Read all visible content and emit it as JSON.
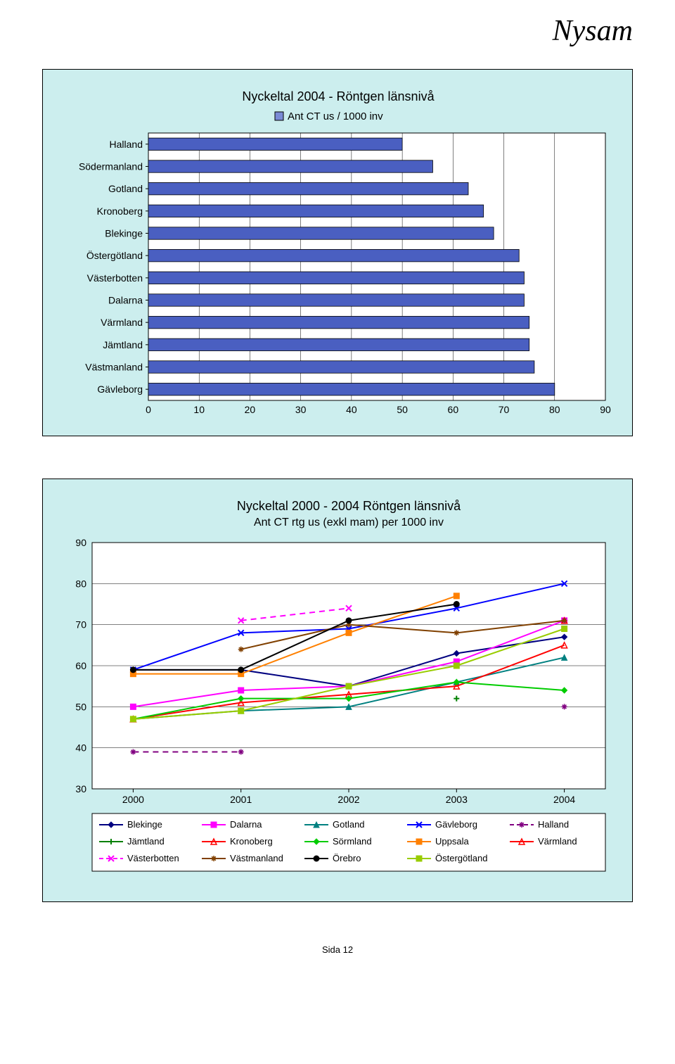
{
  "brand": "Nysam",
  "footer": "Sida 12",
  "barChart": {
    "type": "bar",
    "title": "Nyckeltal 2004  -  Röntgen länsnivå",
    "legend_label": "Ant CT us  /  1000 inv",
    "title_fontsize": 18,
    "legend_fontsize": 15,
    "plot_bg": "#ffffff",
    "frame_bg": "#cceeee",
    "grid_color": "#000000",
    "bar_fill": "#4a5fc1",
    "bar_border": "#000000",
    "legend_box_fill": "#7a8ad6",
    "xmin": 0,
    "xmax": 90,
    "xtick_step": 10,
    "tick_labels": [
      "0",
      "10",
      "20",
      "30",
      "40",
      "50",
      "60",
      "70",
      "80",
      "90"
    ],
    "categories": [
      "Halland",
      "Södermanland",
      "Gotland",
      "Kronoberg",
      "Blekinge",
      "Östergötland",
      "Västerbotten",
      "Dalarna",
      "Värmland",
      "Jämtland",
      "Västmanland",
      "Gävleborg"
    ],
    "values": [
      50,
      56,
      63,
      66,
      68,
      73,
      74,
      74,
      75,
      75,
      76,
      80
    ],
    "label_fontsize": 14,
    "tick_fontsize": 14
  },
  "lineChart": {
    "type": "line",
    "title": "Nyckeltal 2000 - 2004  Röntgen länsnivå",
    "subtitle": "Ant CT rtg us (exkl mam) per 1000 inv",
    "title_fontsize": 18,
    "subtitle_fontsize": 16,
    "plot_bg": "#ffffff",
    "frame_bg": "#cceeee",
    "grid_color": "#000000",
    "ymin": 30,
    "ymax": 90,
    "ytick_step": 10,
    "ytick_labels": [
      "30",
      "40",
      "50",
      "60",
      "70",
      "80",
      "90"
    ],
    "x_labels": [
      "2000",
      "2001",
      "2002",
      "2003",
      "2004"
    ],
    "x_positions": [
      0,
      1,
      2,
      3,
      4
    ],
    "line_width": 2,
    "marker_size": 6,
    "legend_fontsize": 13,
    "series": [
      {
        "name": "Blekinge",
        "color": "#000080",
        "marker": "diamond",
        "dash": "solid",
        "values": [
          59,
          59,
          55,
          63,
          67
        ]
      },
      {
        "name": "Dalarna",
        "color": "#ff00ff",
        "marker": "square",
        "dash": "solid",
        "values": [
          50,
          54,
          55,
          61,
          71
        ]
      },
      {
        "name": "Gotland",
        "color": "#008080",
        "marker": "triangle",
        "dash": "solid",
        "values": [
          47,
          49,
          50,
          56,
          62
        ]
      },
      {
        "name": "Gävleborg",
        "color": "#0000ff",
        "marker": "x",
        "dash": "solid",
        "values": [
          59,
          68,
          69,
          74,
          80
        ]
      },
      {
        "name": "Halland",
        "color": "#800080",
        "marker": "asterisk",
        "dash": "dash",
        "values": [
          39,
          39,
          null,
          null,
          50
        ]
      },
      {
        "name": "Jämtland",
        "color": "#008000",
        "marker": "plus",
        "dash": "solid",
        "values": [
          null,
          null,
          null,
          52,
          null
        ]
      },
      {
        "name": "Kronoberg",
        "color": "#ff0000",
        "marker": "triangle-open",
        "dash": "solid",
        "values": [
          47,
          51,
          53,
          55,
          65
        ]
      },
      {
        "name": "Sörmland",
        "color": "#00cc00",
        "marker": "diamond",
        "dash": "solid",
        "values": [
          47,
          52,
          52,
          56,
          54
        ]
      },
      {
        "name": "Uppsala",
        "color": "#ff8000",
        "marker": "square",
        "dash": "solid",
        "values": [
          58,
          58,
          68,
          77,
          null
        ]
      },
      {
        "name": "Värmland",
        "color": "#ff0000",
        "marker": "triangle-open",
        "dash": "solid",
        "values": [
          null,
          null,
          null,
          null,
          71
        ]
      },
      {
        "name": "Västerbotten",
        "color": "#ff00ff",
        "marker": "x",
        "dash": "dash",
        "values": [
          null,
          71,
          74,
          null,
          null
        ]
      },
      {
        "name": "Västmanland",
        "color": "#804000",
        "marker": "asterisk",
        "dash": "solid",
        "values": [
          null,
          64,
          70,
          68,
          71
        ]
      },
      {
        "name": "Örebro",
        "color": "#000000",
        "marker": "circle",
        "dash": "solid",
        "values": [
          59,
          59,
          71,
          75,
          null
        ]
      },
      {
        "name": "Östergötland",
        "color": "#99cc00",
        "marker": "square",
        "dash": "solid",
        "values": [
          47,
          49,
          55,
          60,
          69
        ]
      }
    ],
    "legend_rows": [
      [
        {
          "name": "Blekinge",
          "color": "#000080",
          "marker": "diamond",
          "dash": "solid"
        },
        {
          "name": "Dalarna",
          "color": "#ff00ff",
          "marker": "square",
          "dash": "solid"
        },
        {
          "name": "Gotland",
          "color": "#008080",
          "marker": "triangle",
          "dash": "solid"
        },
        {
          "name": "Gävleborg",
          "color": "#0000ff",
          "marker": "x",
          "dash": "solid"
        },
        {
          "name": "Halland",
          "color": "#800080",
          "marker": "asterisk",
          "dash": "dash"
        }
      ],
      [
        {
          "name": "Jämtland",
          "color": "#008000",
          "marker": "plus",
          "dash": "solid"
        },
        {
          "name": "Kronoberg",
          "color": "#ff0000",
          "marker": "triangle-open",
          "dash": "solid"
        },
        {
          "name": "Sörmland",
          "color": "#00cc00",
          "marker": "diamond",
          "dash": "solid"
        },
        {
          "name": "Uppsala",
          "color": "#ff8000",
          "marker": "square",
          "dash": "solid"
        },
        {
          "name": "Värmland",
          "color": "#ff0000",
          "marker": "triangle-open",
          "dash": "solid"
        }
      ],
      [
        {
          "name": "Västerbotten",
          "color": "#ff00ff",
          "marker": "x",
          "dash": "dash"
        },
        {
          "name": "Västmanland",
          "color": "#804000",
          "marker": "asterisk",
          "dash": "solid"
        },
        {
          "name": "Örebro",
          "color": "#000000",
          "marker": "circle",
          "dash": "solid"
        },
        {
          "name": "Östergötland",
          "color": "#99cc00",
          "marker": "square",
          "dash": "solid"
        }
      ]
    ]
  }
}
